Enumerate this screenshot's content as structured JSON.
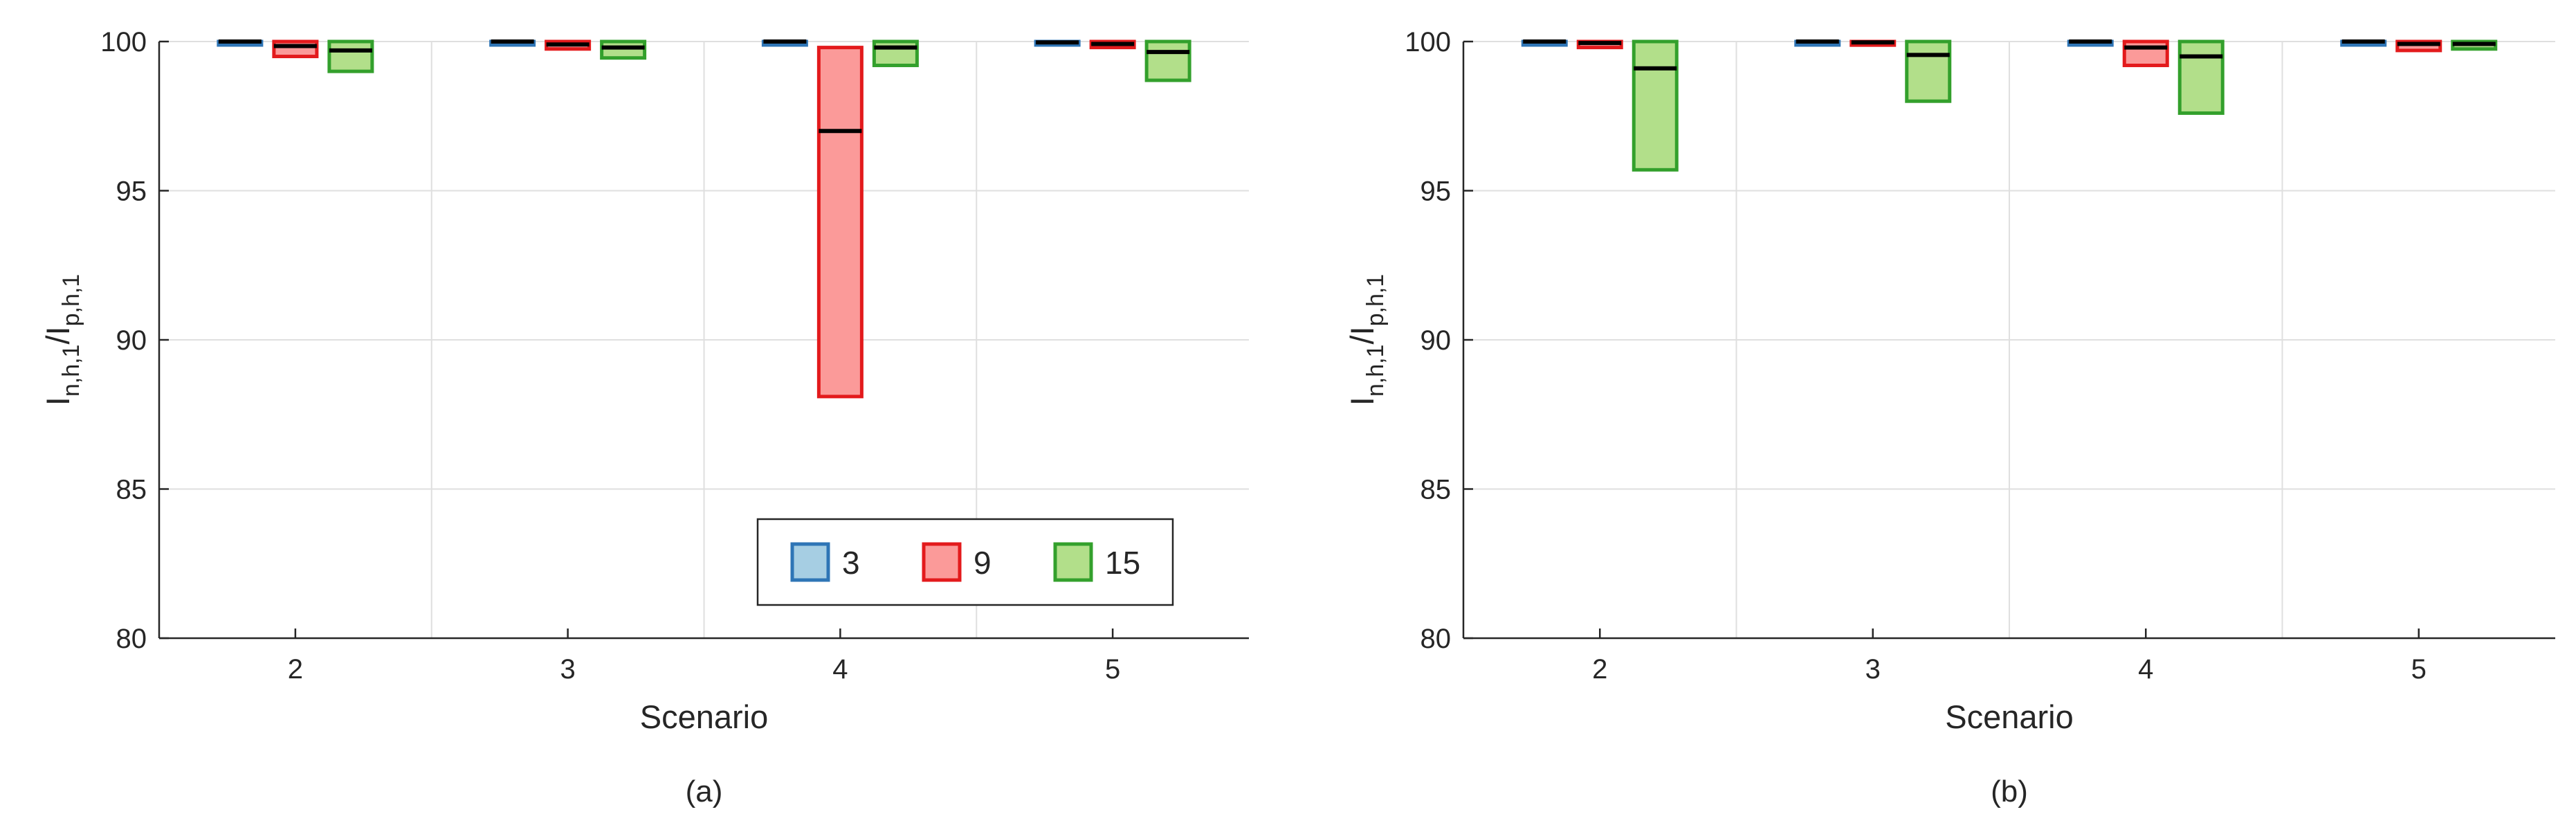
{
  "chart_data": [
    {
      "type": "box",
      "panel": "(a)",
      "xlabel": "Scenario",
      "ylabel": {
        "base": "I",
        "sub1": "n,h,1",
        "mid": "/I",
        "sub2": "p,h,1"
      },
      "ylim": [
        80,
        100
      ],
      "yticks": [
        80,
        85,
        90,
        95,
        100
      ],
      "categories": [
        "2",
        "3",
        "4",
        "5"
      ],
      "grid": true,
      "legend": {
        "placement": "lower-right",
        "entries": [
          "3",
          "9",
          "15"
        ]
      },
      "series": [
        {
          "name": "3",
          "color": "#2E75B6",
          "fill": "#A6CEE3",
          "boxes": [
            {
              "q1": 99.97,
              "median": 100.0,
              "q3": 100.0
            },
            {
              "q1": 99.97,
              "median": 100.0,
              "q3": 100.0
            },
            {
              "q1": 99.97,
              "median": 100.0,
              "q3": 100.0
            },
            {
              "q1": 99.9,
              "median": 99.97,
              "q3": 100.0
            }
          ]
        },
        {
          "name": "9",
          "color": "#E31A1C",
          "fill": "#FB9A99",
          "boxes": [
            {
              "q1": 99.5,
              "median": 99.85,
              "q3": 100.0
            },
            {
              "q1": 99.75,
              "median": 99.9,
              "q3": 100.0
            },
            {
              "q1": 88.1,
              "median": 97.0,
              "q3": 99.8
            },
            {
              "q1": 99.8,
              "median": 99.92,
              "q3": 100.0
            }
          ]
        },
        {
          "name": "15",
          "color": "#33A02C",
          "fill": "#B2DF8A",
          "boxes": [
            {
              "q1": 99.0,
              "median": 99.7,
              "q3": 100.0
            },
            {
              "q1": 99.45,
              "median": 99.8,
              "q3": 100.0
            },
            {
              "q1": 99.2,
              "median": 99.8,
              "q3": 100.0
            },
            {
              "q1": 98.7,
              "median": 99.65,
              "q3": 100.0
            }
          ]
        }
      ]
    },
    {
      "type": "box",
      "panel": "(b)",
      "xlabel": "Scenario",
      "ylabel": {
        "base": "I",
        "sub1": "n,h,1",
        "mid": "/I",
        "sub2": "p,h,1"
      },
      "ylim": [
        80,
        100
      ],
      "yticks": [
        80,
        85,
        90,
        95,
        100
      ],
      "categories": [
        "2",
        "3",
        "4",
        "5"
      ],
      "grid": true,
      "series": [
        {
          "name": "3",
          "color": "#2E75B6",
          "fill": "#A6CEE3",
          "boxes": [
            {
              "q1": 99.97,
              "median": 100.0,
              "q3": 100.0
            },
            {
              "q1": 99.97,
              "median": 100.0,
              "q3": 100.0
            },
            {
              "q1": 99.97,
              "median": 100.0,
              "q3": 100.0
            },
            {
              "q1": 99.97,
              "median": 100.0,
              "q3": 100.0
            }
          ]
        },
        {
          "name": "9",
          "color": "#E31A1C",
          "fill": "#FB9A99",
          "boxes": [
            {
              "q1": 99.8,
              "median": 99.95,
              "q3": 100.0
            },
            {
              "q1": 99.88,
              "median": 99.97,
              "q3": 100.0
            },
            {
              "q1": 99.2,
              "median": 99.8,
              "q3": 100.0
            },
            {
              "q1": 99.7,
              "median": 99.92,
              "q3": 100.0
            }
          ]
        },
        {
          "name": "15",
          "color": "#33A02C",
          "fill": "#B2DF8A",
          "boxes": [
            {
              "q1": 95.7,
              "median": 99.1,
              "q3": 100.0
            },
            {
              "q1": 98.0,
              "median": 99.55,
              "q3": 100.0
            },
            {
              "q1": 97.6,
              "median": 99.5,
              "q3": 100.0
            },
            {
              "q1": 99.75,
              "median": 99.92,
              "q3": 100.0
            }
          ]
        }
      ]
    }
  ]
}
